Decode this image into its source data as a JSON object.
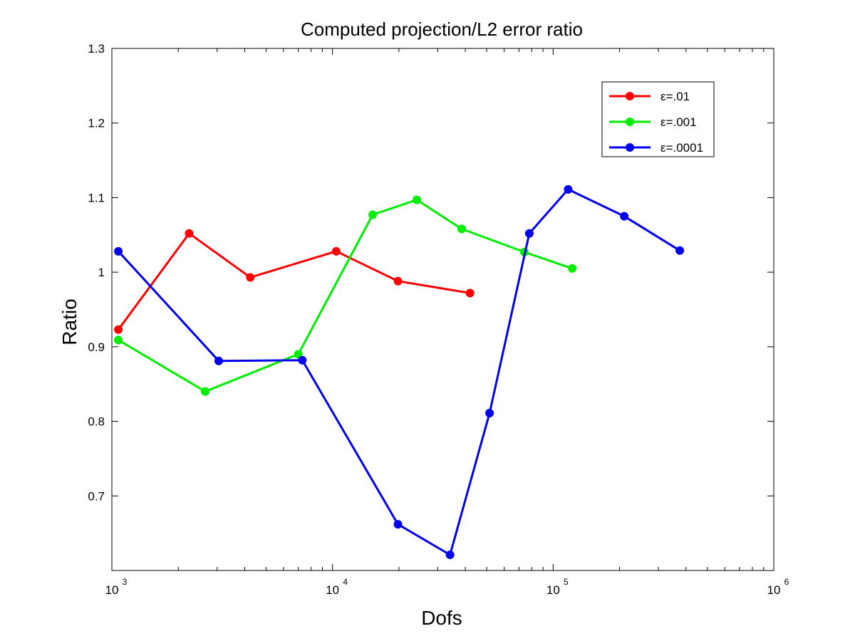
{
  "chart_data": {
    "type": "line",
    "title": "Computed projection/L2 error ratio",
    "xlabel": "Dofs",
    "ylabel": "Ratio",
    "xscale": "log",
    "xlim": [
      1000,
      1000000
    ],
    "ylim": [
      0.6,
      1.3
    ],
    "grid": false,
    "legend_position": "top-right",
    "x_ticks": [
      {
        "base": "10",
        "exp": "3",
        "value": 1000
      },
      {
        "base": "10",
        "exp": "4",
        "value": 10000
      },
      {
        "base": "10",
        "exp": "5",
        "value": 100000
      },
      {
        "base": "10",
        "exp": "6",
        "value": 1000000
      }
    ],
    "y_ticks": [
      {
        "label": "0.7",
        "value": 0.7
      },
      {
        "label": "0.8",
        "value": 0.8
      },
      {
        "label": "0.9",
        "value": 0.9
      },
      {
        "label": "1",
        "value": 1.0
      },
      {
        "label": "1.1",
        "value": 1.1
      },
      {
        "label": "1.2",
        "value": 1.2
      },
      {
        "label": "1.3",
        "value": 1.3
      }
    ],
    "series": [
      {
        "name": "ε=.01",
        "color": "#ff0000",
        "x": [
          1070,
          2240,
          4240,
          10400,
          19800,
          42000
        ],
        "y": [
          0.923,
          1.052,
          0.993,
          1.028,
          0.988,
          0.972
        ]
      },
      {
        "name": "ε=.001",
        "color": "#00ee00",
        "x": [
          1070,
          2650,
          7000,
          15200,
          24100,
          38500,
          74000,
          122000
        ],
        "y": [
          0.909,
          0.84,
          0.89,
          1.077,
          1.097,
          1.058,
          1.027,
          1.005
        ]
      },
      {
        "name": "ε=.0001",
        "color": "#0000ee",
        "x": [
          1070,
          3050,
          7300,
          19800,
          34100,
          51500,
          78000,
          117000,
          210000,
          375000
        ],
        "y": [
          1.028,
          0.881,
          0.882,
          0.662,
          0.621,
          0.811,
          1.052,
          1.111,
          1.075,
          1.029
        ]
      }
    ]
  }
}
